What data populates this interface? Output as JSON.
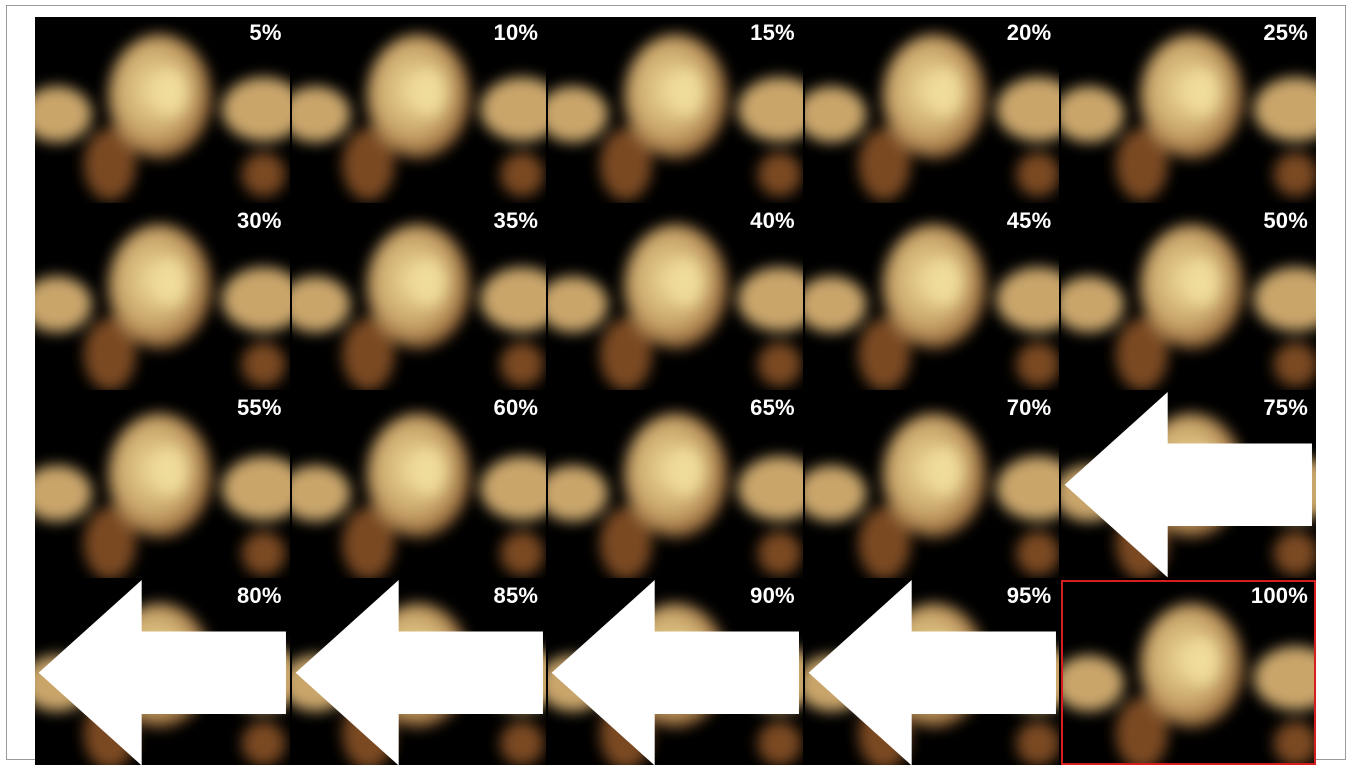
{
  "tiles": [
    {
      "label": "5%",
      "arrow": false,
      "highlighted": false
    },
    {
      "label": "10%",
      "arrow": false,
      "highlighted": false
    },
    {
      "label": "15%",
      "arrow": false,
      "highlighted": false
    },
    {
      "label": "20%",
      "arrow": false,
      "highlighted": false
    },
    {
      "label": "25%",
      "arrow": false,
      "highlighted": false
    },
    {
      "label": "30%",
      "arrow": false,
      "highlighted": false
    },
    {
      "label": "35%",
      "arrow": false,
      "highlighted": false
    },
    {
      "label": "40%",
      "arrow": false,
      "highlighted": false
    },
    {
      "label": "45%",
      "arrow": false,
      "highlighted": false
    },
    {
      "label": "50%",
      "arrow": false,
      "highlighted": false
    },
    {
      "label": "55%",
      "arrow": false,
      "highlighted": false
    },
    {
      "label": "60%",
      "arrow": false,
      "highlighted": false
    },
    {
      "label": "65%",
      "arrow": false,
      "highlighted": false
    },
    {
      "label": "70%",
      "arrow": false,
      "highlighted": false
    },
    {
      "label": "75%",
      "arrow": true,
      "highlighted": false
    },
    {
      "label": "80%",
      "arrow": true,
      "highlighted": false
    },
    {
      "label": "85%",
      "arrow": true,
      "highlighted": false
    },
    {
      "label": "90%",
      "arrow": true,
      "highlighted": false
    },
    {
      "label": "95%",
      "arrow": true,
      "highlighted": false
    },
    {
      "label": "100%",
      "arrow": false,
      "highlighted": true
    }
  ],
  "colors": {
    "background": "#000000",
    "label_text": "#ffffff",
    "arrow": "#ffffff",
    "highlight_border": "#d71e1e",
    "tissue_bright": "#f0dc9a",
    "tissue_mid": "#c9a56a",
    "tissue_dark": "#7a4a22"
  }
}
